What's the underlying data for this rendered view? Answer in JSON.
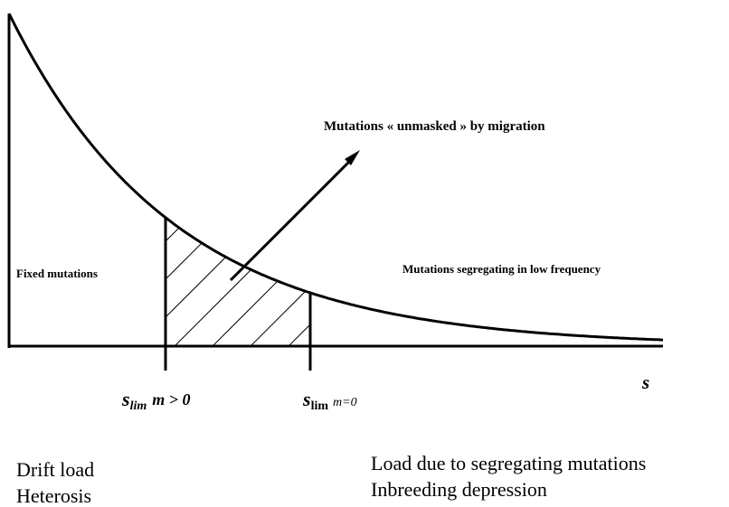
{
  "diagram": {
    "arrow_label": "Mutations « unmasked » by migration",
    "left_region_label": "Fixed mutations",
    "right_region_label": "Mutations segregating in low frequency",
    "x_axis_label": "s",
    "threshold_migration": {
      "base": "s",
      "sub": "lim",
      "cond": "m > 0"
    },
    "threshold_no_migration": {
      "base": "s",
      "sub": "lim",
      "cond": "m=0"
    },
    "left_effects": [
      "Drift load",
      "Heterosis"
    ],
    "right_effects": [
      "Load due to segregating mutations",
      "Inbreeding depression"
    ]
  }
}
